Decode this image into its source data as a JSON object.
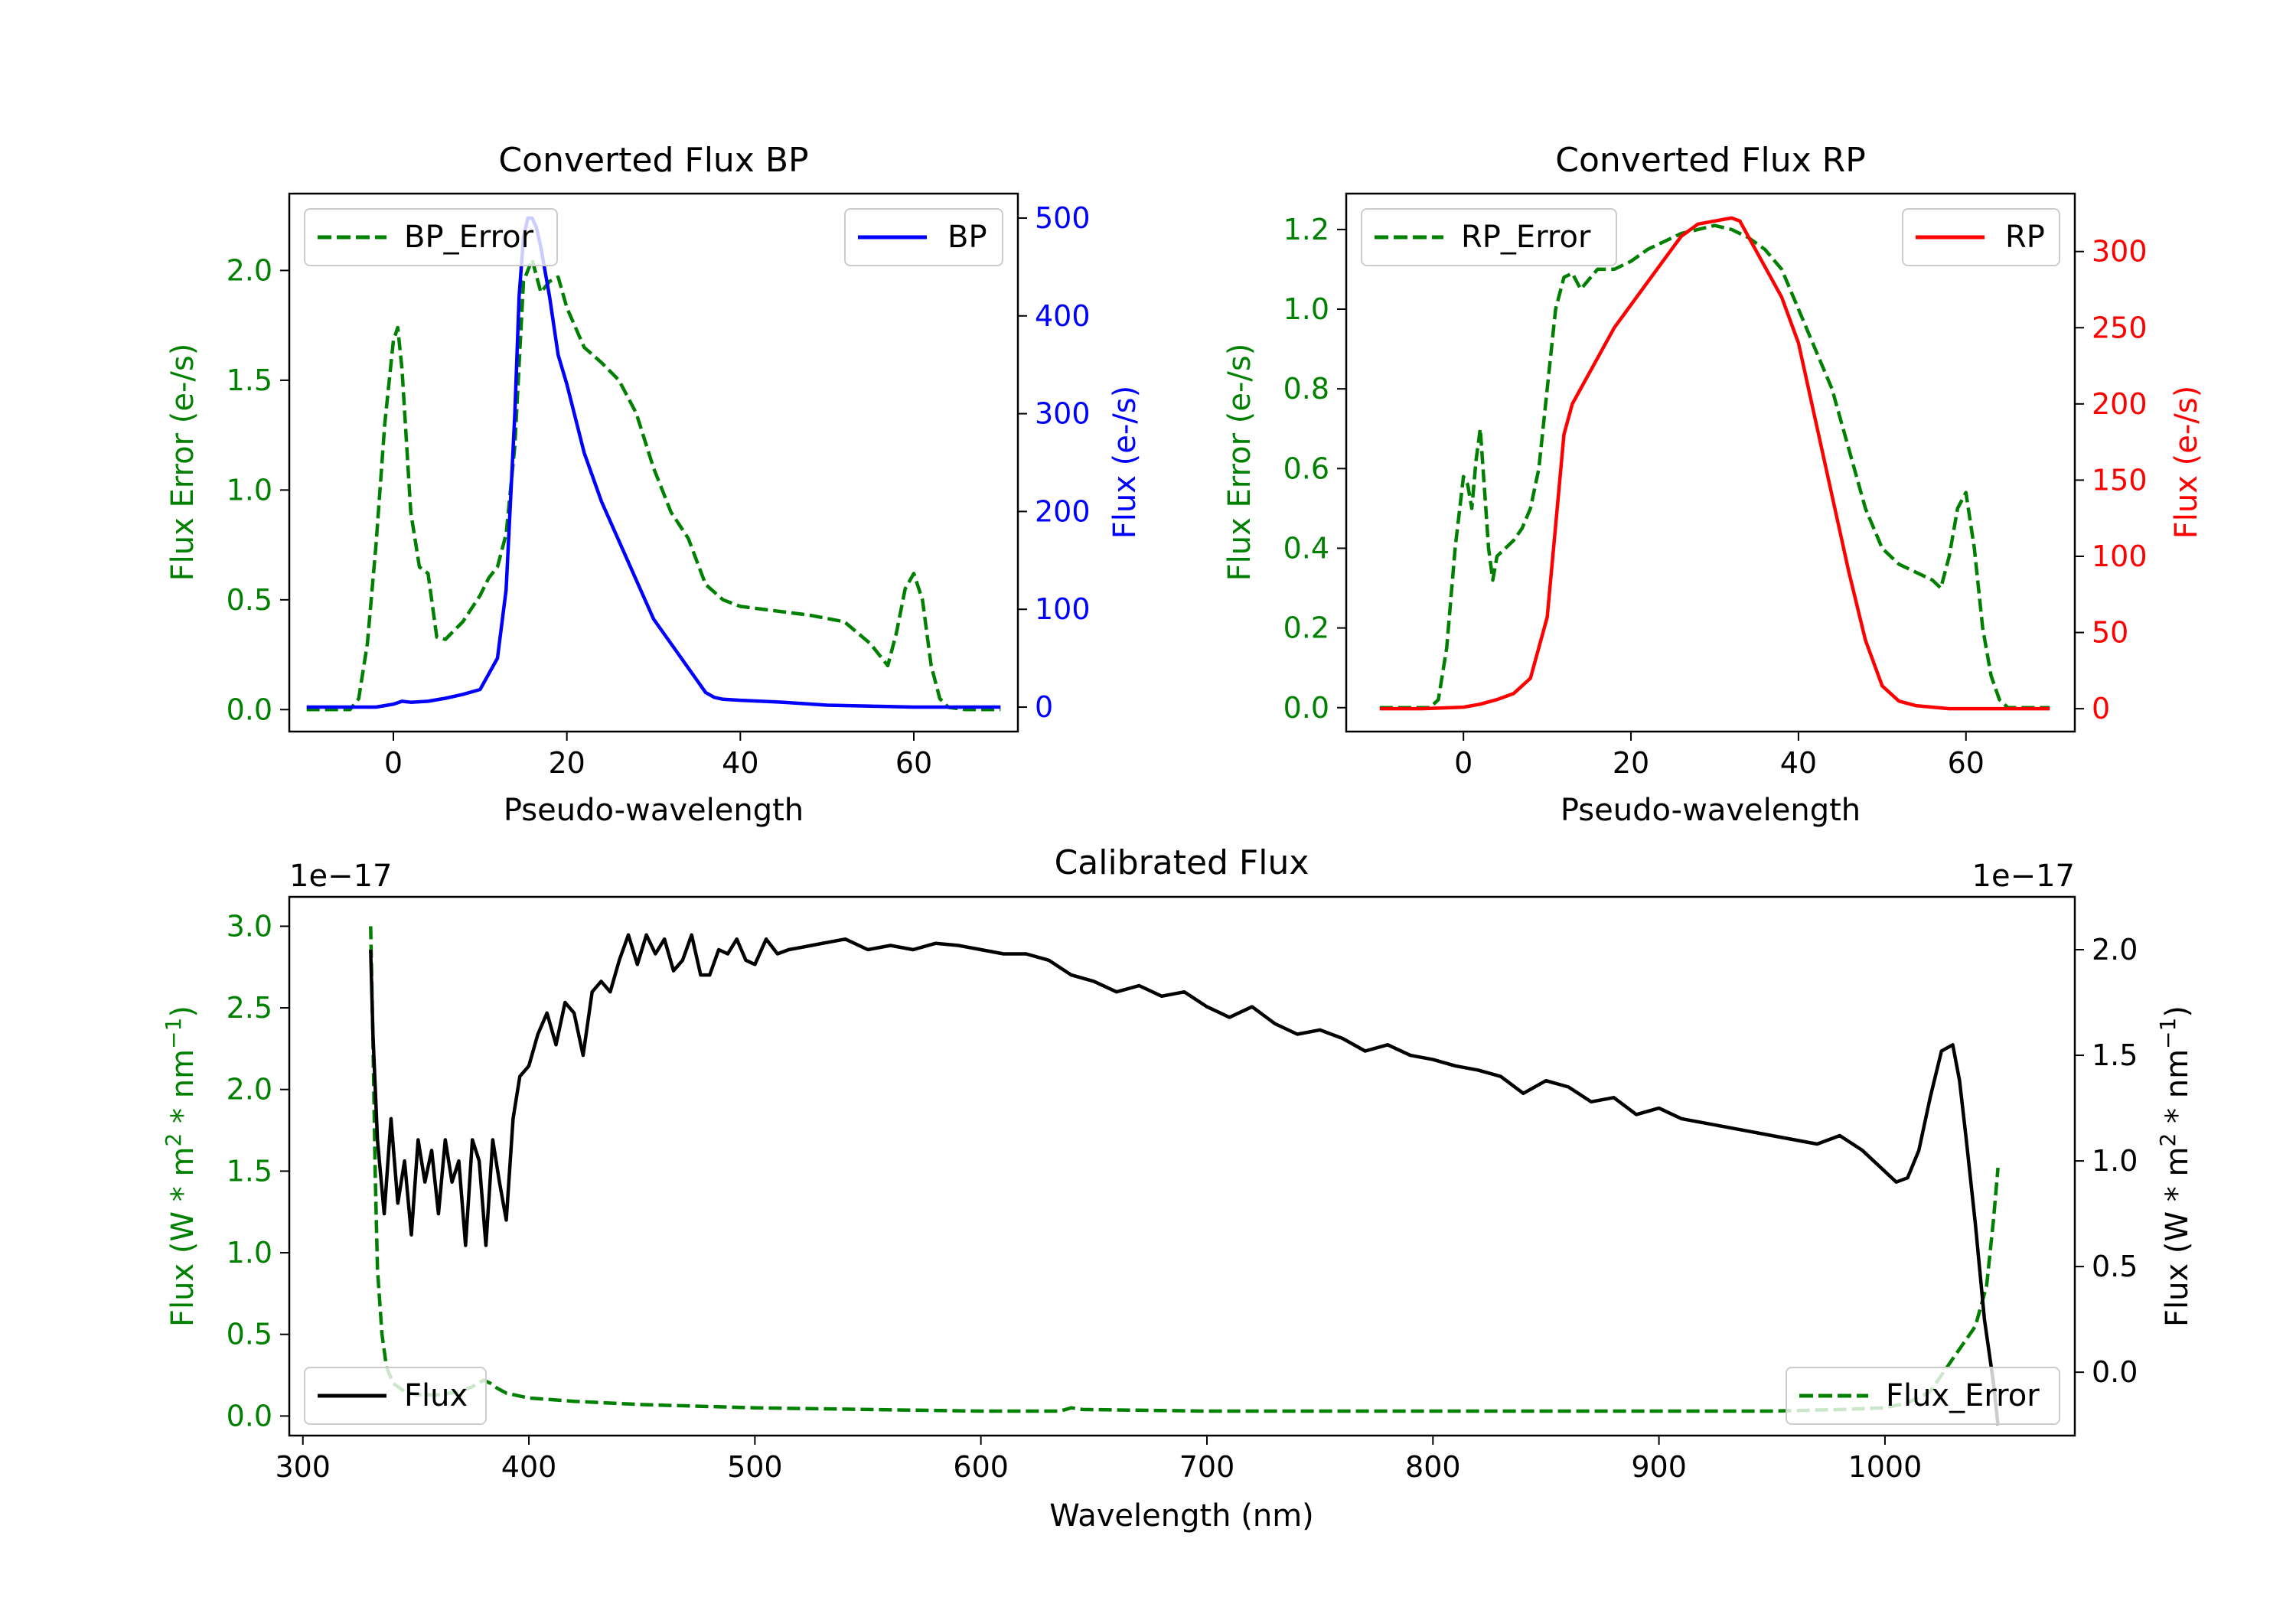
{
  "colors": {
    "error": "#008000",
    "bp": "#0000ff",
    "rp": "#ff0000",
    "flux": "#000000"
  },
  "chart_data": [
    {
      "id": "bp",
      "type": "line",
      "title": "Converted Flux BP",
      "xlabel": "Pseudo-wavelength",
      "ylabel_left": "Flux Error (e-/s)",
      "ylabel_right": "Flux (e-/s)",
      "xlim": [
        -12,
        72
      ],
      "ylim_left": [
        -0.1,
        2.35
      ],
      "ylim_right": [
        -25,
        525
      ],
      "xticks": [
        0,
        20,
        40,
        60
      ],
      "yticks_left": [
        0.0,
        0.5,
        1.0,
        1.5,
        2.0
      ],
      "ytick_labels_left": [
        "0.0",
        "0.5",
        "1.0",
        "1.5",
        "2.0"
      ],
      "yticks_right": [
        0,
        100,
        200,
        300,
        400,
        500
      ],
      "ytick_labels_right": [
        "0",
        "100",
        "200",
        "300",
        "400",
        "500"
      ],
      "legend_left": "BP_Error",
      "legend_right": "BP",
      "series": [
        {
          "name": "BP_Error",
          "axis": "left",
          "style": "dashed",
          "color": "error",
          "x": [
            -10,
            -5,
            -4,
            -3,
            -2,
            -1,
            0,
            0.5,
            1,
            2,
            3,
            4,
            5,
            6,
            7,
            8,
            9,
            10,
            11,
            12,
            13,
            14,
            15,
            16,
            17,
            18,
            19,
            20,
            22,
            24,
            26,
            28,
            30,
            32,
            34,
            36,
            38,
            40,
            44,
            48,
            52,
            55,
            57,
            58,
            59,
            60,
            61,
            62,
            63,
            64,
            66,
            70
          ],
          "y": [
            0,
            0,
            0.05,
            0.3,
            0.75,
            1.3,
            1.68,
            1.74,
            1.55,
            0.9,
            0.65,
            0.62,
            0.33,
            0.32,
            0.36,
            0.4,
            0.46,
            0.52,
            0.6,
            0.65,
            0.8,
            1.2,
            1.95,
            2.05,
            1.9,
            1.95,
            1.97,
            1.83,
            1.65,
            1.58,
            1.5,
            1.35,
            1.1,
            0.9,
            0.78,
            0.57,
            0.5,
            0.47,
            0.45,
            0.43,
            0.4,
            0.3,
            0.2,
            0.35,
            0.55,
            0.62,
            0.5,
            0.2,
            0.05,
            0.01,
            0,
            0
          ]
        },
        {
          "name": "BP",
          "axis": "right",
          "style": "solid",
          "color": "bp",
          "x": [
            -10,
            -2,
            0,
            1,
            2,
            4,
            6,
            8,
            10,
            12,
            13,
            14,
            14.5,
            15,
            15.5,
            16,
            16.5,
            17,
            18,
            19,
            20,
            22,
            24,
            26,
            28,
            30,
            32,
            34,
            36,
            37,
            38,
            40,
            45,
            50,
            55,
            60,
            65,
            70
          ],
          "y": [
            0,
            0,
            3,
            6,
            5,
            6,
            9,
            13,
            18,
            50,
            120,
            300,
            420,
            480,
            500,
            500,
            490,
            470,
            420,
            360,
            330,
            260,
            210,
            170,
            130,
            90,
            65,
            40,
            15,
            10,
            8,
            7,
            5,
            2,
            1,
            0,
            0,
            0
          ]
        }
      ]
    },
    {
      "id": "rp",
      "type": "line",
      "title": "Converted Flux RP",
      "xlabel": "Pseudo-wavelength",
      "ylabel_left": "Flux Error (e-/s)",
      "ylabel_right": "Flux (e-/s)",
      "xlim": [
        -14,
        73
      ],
      "ylim_left": [
        -0.06,
        1.29
      ],
      "ylim_right": [
        -15,
        338
      ],
      "xticks": [
        0,
        20,
        40,
        60
      ],
      "yticks_left": [
        0.0,
        0.2,
        0.4,
        0.6,
        0.8,
        1.0,
        1.2
      ],
      "ytick_labels_left": [
        "0.0",
        "0.2",
        "0.4",
        "0.6",
        "0.8",
        "1.0",
        "1.2"
      ],
      "yticks_right": [
        0,
        50,
        100,
        150,
        200,
        250,
        300
      ],
      "ytick_labels_right": [
        "0",
        "50",
        "100",
        "150",
        "200",
        "250",
        "300"
      ],
      "legend_left": "RP_Error",
      "legend_right": "RP",
      "series": [
        {
          "name": "RP_Error",
          "axis": "left",
          "style": "dashed",
          "color": "error",
          "x": [
            -10,
            -4,
            -3,
            -2,
            -1,
            0,
            0.5,
            1,
            1.5,
            2,
            2.5,
            3,
            3.5,
            4,
            5,
            6,
            7,
            8,
            9,
            10,
            11,
            12,
            13,
            14,
            16,
            18,
            20,
            22,
            24,
            26,
            28,
            30,
            32,
            34,
            36,
            38,
            40,
            42,
            44,
            46,
            48,
            50,
            52,
            54,
            56,
            57,
            58,
            59,
            60,
            61,
            62,
            63,
            64,
            65,
            70
          ],
          "y": [
            0,
            0,
            0.02,
            0.15,
            0.4,
            0.58,
            0.56,
            0.5,
            0.62,
            0.7,
            0.55,
            0.4,
            0.32,
            0.38,
            0.4,
            0.42,
            0.45,
            0.5,
            0.6,
            0.8,
            1.0,
            1.08,
            1.09,
            1.05,
            1.1,
            1.1,
            1.12,
            1.15,
            1.17,
            1.19,
            1.2,
            1.21,
            1.2,
            1.18,
            1.15,
            1.1,
            1.0,
            0.9,
            0.8,
            0.65,
            0.5,
            0.4,
            0.36,
            0.34,
            0.32,
            0.3,
            0.38,
            0.5,
            0.54,
            0.4,
            0.2,
            0.08,
            0.02,
            0,
            0
          ]
        },
        {
          "name": "RP",
          "axis": "right",
          "style": "solid",
          "color": "rp",
          "x": [
            -10,
            -5,
            0,
            2,
            4,
            6,
            8,
            10,
            11,
            12,
            13,
            14,
            16,
            18,
            20,
            22,
            24,
            26,
            28,
            30,
            32,
            33,
            34,
            36,
            38,
            40,
            42,
            44,
            46,
            48,
            50,
            52,
            54,
            56,
            58,
            60,
            65,
            70
          ],
          "y": [
            0,
            0,
            1,
            3,
            6,
            10,
            20,
            60,
            120,
            180,
            200,
            210,
            230,
            250,
            265,
            280,
            295,
            310,
            318,
            320,
            322,
            320,
            310,
            290,
            270,
            240,
            190,
            140,
            90,
            45,
            15,
            5,
            2,
            1,
            0,
            0,
            0,
            0
          ]
        }
      ]
    },
    {
      "id": "cal",
      "type": "line",
      "title": "Calibrated Flux",
      "xlabel": "Wavelength (nm)",
      "ylabel_left_main": "Flux (W * m",
      "ylabel_right_main": "Flux (W * m",
      "ylabel_sup": "2",
      "ylabel_mid": " * nm",
      "ylabel_sup2": "−1",
      "ylabel_end": ")",
      "offset_left": "1e−17",
      "offset_right": "1e−17",
      "xlim": [
        294,
        1084
      ],
      "ylim_left": [
        -0.12,
        3.18
      ],
      "ylim_right": [
        -0.3,
        2.25
      ],
      "xticks": [
        300,
        400,
        500,
        600,
        700,
        800,
        900,
        1000
      ],
      "yticks_left": [
        0.0,
        0.5,
        1.0,
        1.5,
        2.0,
        2.5,
        3.0
      ],
      "ytick_labels_left": [
        "0.0",
        "0.5",
        "1.0",
        "1.5",
        "2.0",
        "2.5",
        "3.0"
      ],
      "yticks_right": [
        0.0,
        0.5,
        1.0,
        1.5,
        2.0
      ],
      "ytick_labels_right": [
        "0.0",
        "0.5",
        "1.0",
        "1.5",
        "2.0"
      ],
      "legend_left": "Flux",
      "legend_right": "Flux_Error",
      "series": [
        {
          "name": "Flux",
          "axis": "right",
          "style": "solid",
          "color": "flux",
          "x": [
            330,
            331,
            333,
            336,
            339,
            342,
            345,
            348,
            351,
            354,
            357,
            360,
            363,
            366,
            369,
            372,
            375,
            378,
            381,
            384,
            387,
            390,
            393,
            396,
            400,
            404,
            408,
            412,
            416,
            420,
            424,
            428,
            432,
            436,
            440,
            444,
            448,
            452,
            456,
            460,
            464,
            468,
            472,
            476,
            480,
            484,
            488,
            492,
            496,
            500,
            505,
            510,
            515,
            520,
            525,
            530,
            540,
            550,
            560,
            570,
            580,
            590,
            600,
            610,
            620,
            630,
            640,
            650,
            660,
            670,
            680,
            690,
            700,
            710,
            720,
            730,
            740,
            750,
            760,
            770,
            780,
            790,
            800,
            810,
            820,
            830,
            840,
            850,
            860,
            870,
            880,
            890,
            900,
            910,
            920,
            930,
            940,
            950,
            960,
            970,
            980,
            990,
            1000,
            1005,
            1010,
            1015,
            1020,
            1025,
            1030,
            1033,
            1036,
            1040,
            1044,
            1048,
            1050
          ],
          "y": [
            2.0,
            1.6,
            1.1,
            0.75,
            1.2,
            0.8,
            1.0,
            0.65,
            1.1,
            0.9,
            1.05,
            0.75,
            1.1,
            0.9,
            1.0,
            0.6,
            1.1,
            1.0,
            0.6,
            1.1,
            0.9,
            0.72,
            1.2,
            1.4,
            1.45,
            1.6,
            1.7,
            1.55,
            1.75,
            1.7,
            1.5,
            1.8,
            1.85,
            1.8,
            1.95,
            2.07,
            1.93,
            2.07,
            1.98,
            2.05,
            1.9,
            1.95,
            2.07,
            1.88,
            1.88,
            2.0,
            1.98,
            2.05,
            1.95,
            1.93,
            2.05,
            1.98,
            2.0,
            2.01,
            2.02,
            2.03,
            2.05,
            2.0,
            2.02,
            2.0,
            2.03,
            2.02,
            2.0,
            1.98,
            1.98,
            1.95,
            1.88,
            1.85,
            1.8,
            1.83,
            1.78,
            1.8,
            1.73,
            1.68,
            1.73,
            1.65,
            1.6,
            1.62,
            1.58,
            1.52,
            1.55,
            1.5,
            1.48,
            1.45,
            1.43,
            1.4,
            1.32,
            1.38,
            1.35,
            1.28,
            1.3,
            1.22,
            1.25,
            1.2,
            1.18,
            1.16,
            1.14,
            1.12,
            1.1,
            1.08,
            1.12,
            1.05,
            0.95,
            0.9,
            0.92,
            1.05,
            1.3,
            1.52,
            1.55,
            1.38,
            1.1,
            0.7,
            0.25,
            -0.05,
            -0.25
          ]
        },
        {
          "name": "Flux_Error",
          "axis": "left",
          "style": "dashed",
          "color": "error",
          "x": [
            330,
            331,
            332,
            333,
            335,
            337,
            340,
            345,
            350,
            360,
            370,
            375,
            380,
            383,
            386,
            390,
            400,
            420,
            450,
            500,
            550,
            600,
            635,
            640,
            645,
            700,
            800,
            900,
            950,
            980,
            1000,
            1010,
            1020,
            1025,
            1030,
            1035,
            1040,
            1045,
            1048,
            1050
          ],
          "y": [
            3.0,
            2.3,
            1.5,
            0.9,
            0.5,
            0.3,
            0.2,
            0.15,
            0.13,
            0.13,
            0.15,
            0.18,
            0.22,
            0.2,
            0.17,
            0.14,
            0.11,
            0.09,
            0.07,
            0.05,
            0.04,
            0.03,
            0.03,
            0.05,
            0.04,
            0.03,
            0.03,
            0.03,
            0.03,
            0.04,
            0.05,
            0.08,
            0.15,
            0.25,
            0.35,
            0.45,
            0.55,
            0.8,
            1.2,
            1.52
          ]
        }
      ]
    }
  ]
}
